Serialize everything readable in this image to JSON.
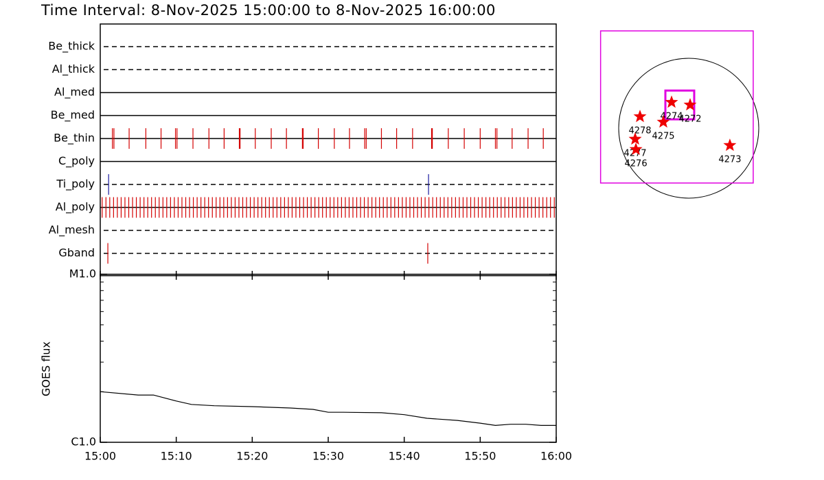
{
  "chart_data": [
    {
      "type": "timeline",
      "title": "Time Interval:  8-Nov-2025 15:00:00 to  8-Nov-2025 16:00:00",
      "xlim": [
        0,
        60
      ],
      "xticks": [
        0,
        10,
        20,
        30,
        40,
        50,
        60
      ],
      "series": [
        {
          "name": "Be_thick",
          "style": "dashed",
          "color": "#d40000",
          "values": []
        },
        {
          "name": "Al_thick",
          "style": "dashed",
          "color": "#d40000",
          "values": []
        },
        {
          "name": "Al_med",
          "style": "solid",
          "color": "#d40000",
          "values": []
        },
        {
          "name": "Be_med",
          "style": "solid",
          "color": "#d40000",
          "values": []
        },
        {
          "name": "Be_thin",
          "style": "solid",
          "color": "#d40000",
          "values": [
            1.6,
            1.8,
            3.8,
            6.0,
            8.0,
            9.9,
            10.1,
            12.2,
            14.3,
            16.3,
            18.3,
            18.4,
            20.4,
            22.5,
            24.5,
            26.6,
            26.7,
            28.7,
            30.8,
            32.8,
            34.8,
            35.0,
            37.0,
            39.0,
            41.1,
            43.6,
            43.7,
            45.8,
            47.9,
            50.0,
            52.0,
            52.2,
            54.2,
            56.3,
            58.3
          ]
        },
        {
          "name": "C_poly",
          "style": "solid",
          "color": "#d40000",
          "values": []
        },
        {
          "name": "Ti_poly",
          "style": "dashed",
          "color": "#1a1aa0",
          "values": [
            1.1,
            43.2
          ]
        },
        {
          "name": "Al_poly",
          "style": "solid",
          "color": "#d40000",
          "values": [
            0.25,
            0.75,
            1.25,
            1.75,
            2.25,
            2.75,
            3.25,
            3.75,
            4.25,
            4.75,
            5.25,
            5.75,
            6.25,
            6.75,
            7.25,
            7.75,
            8.25,
            8.75,
            9.25,
            9.75,
            10.25,
            10.75,
            11.25,
            11.75,
            12.25,
            12.75,
            13.25,
            13.75,
            14.25,
            14.75,
            15.25,
            15.75,
            16.25,
            16.75,
            17.25,
            17.75,
            18.25,
            18.75,
            19.25,
            19.75,
            20.25,
            20.75,
            21.25,
            21.75,
            22.25,
            22.75,
            23.25,
            23.75,
            24.25,
            24.75,
            25.25,
            25.75,
            26.25,
            26.75,
            27.25,
            27.75,
            28.25,
            28.75,
            29.25,
            29.75,
            30.25,
            30.75,
            31.25,
            31.75,
            32.25,
            32.75,
            33.25,
            33.75,
            34.25,
            34.75,
            35.25,
            35.75,
            36.25,
            36.75,
            37.25,
            37.75,
            38.25,
            38.75,
            39.25,
            39.75,
            40.25,
            40.75,
            41.25,
            41.75,
            42.25,
            42.75,
            43.25,
            43.75,
            44.25,
            44.75,
            45.25,
            45.75,
            46.25,
            46.75,
            47.25,
            47.75,
            48.25,
            48.75,
            49.25,
            49.75,
            50.25,
            50.75,
            51.25,
            51.75,
            52.25,
            52.75,
            53.25,
            53.75,
            54.25,
            54.75,
            55.25,
            55.75,
            56.25,
            56.75,
            57.25,
            57.75,
            58.25,
            58.75,
            59.25,
            59.75
          ]
        },
        {
          "name": "Al_mesh",
          "style": "dashed",
          "color": "#d40000",
          "values": []
        },
        {
          "name": "Gband",
          "style": "dashed",
          "color": "#d40000",
          "values": [
            1.0,
            43.1
          ]
        }
      ]
    },
    {
      "type": "line",
      "y_label": "GOES flux",
      "log_y": true,
      "color": "#000000",
      "xlim": [
        0,
        60
      ],
      "xticks": [
        {
          "value": 0,
          "label": "15:00"
        },
        {
          "value": 10,
          "label": "15:10"
        },
        {
          "value": 20,
          "label": "15:20"
        },
        {
          "value": 30,
          "label": "15:30"
        },
        {
          "value": 40,
          "label": "15:40"
        },
        {
          "value": 50,
          "label": "15:50"
        },
        {
          "value": 60,
          "label": "16:00"
        }
      ],
      "ylim": [
        1e-06,
        1e-05
      ],
      "yticks": [
        {
          "value": 1e-06,
          "label": "C1.0"
        },
        {
          "value": 1e-05,
          "label": "M1.0"
        }
      ],
      "minor_yticks": [
        2e-06,
        3e-06,
        4e-06,
        5e-06,
        6e-06,
        7e-06,
        8e-06,
        9e-06
      ],
      "x": [
        0,
        5,
        7,
        10,
        12,
        15,
        20,
        25,
        28,
        30,
        32,
        37,
        40,
        43,
        47,
        50,
        52,
        54,
        56,
        58,
        60
      ],
      "values": [
        2e-06,
        1.91e-06,
        1.91e-06,
        1.76e-06,
        1.68e-06,
        1.65e-06,
        1.63e-06,
        1.6e-06,
        1.57e-06,
        1.51e-06,
        1.51e-06,
        1.5e-06,
        1.46e-06,
        1.39e-06,
        1.35e-06,
        1.3e-06,
        1.26e-06,
        1.28e-06,
        1.28e-06,
        1.26e-06,
        1.26e-06
      ]
    },
    {
      "type": "map",
      "marker_color": "#ee0000",
      "boxes": [
        {
          "x": [
            -1208,
            884
          ],
          "y": [
            -752,
            1336
          ],
          "color": "#e000e0"
        },
        {
          "x": [
            -320,
            75
          ],
          "y": [
            122,
            517
          ],
          "color": "#e000e0"
        }
      ],
      "points": [
        {
          "label": "4274",
          "x": -235,
          "y": 357
        },
        {
          "label": "4272",
          "x": 19,
          "y": 320
        },
        {
          "label": "4278",
          "x": -668,
          "y": 160
        },
        {
          "label": "4275",
          "x": -348,
          "y": 85
        },
        {
          "label": "4277",
          "x": -734,
          "y": -150
        },
        {
          "label": "4276",
          "x": -724,
          "y": -291
        },
        {
          "label": "4273",
          "x": 564,
          "y": -235
        }
      ]
    }
  ]
}
